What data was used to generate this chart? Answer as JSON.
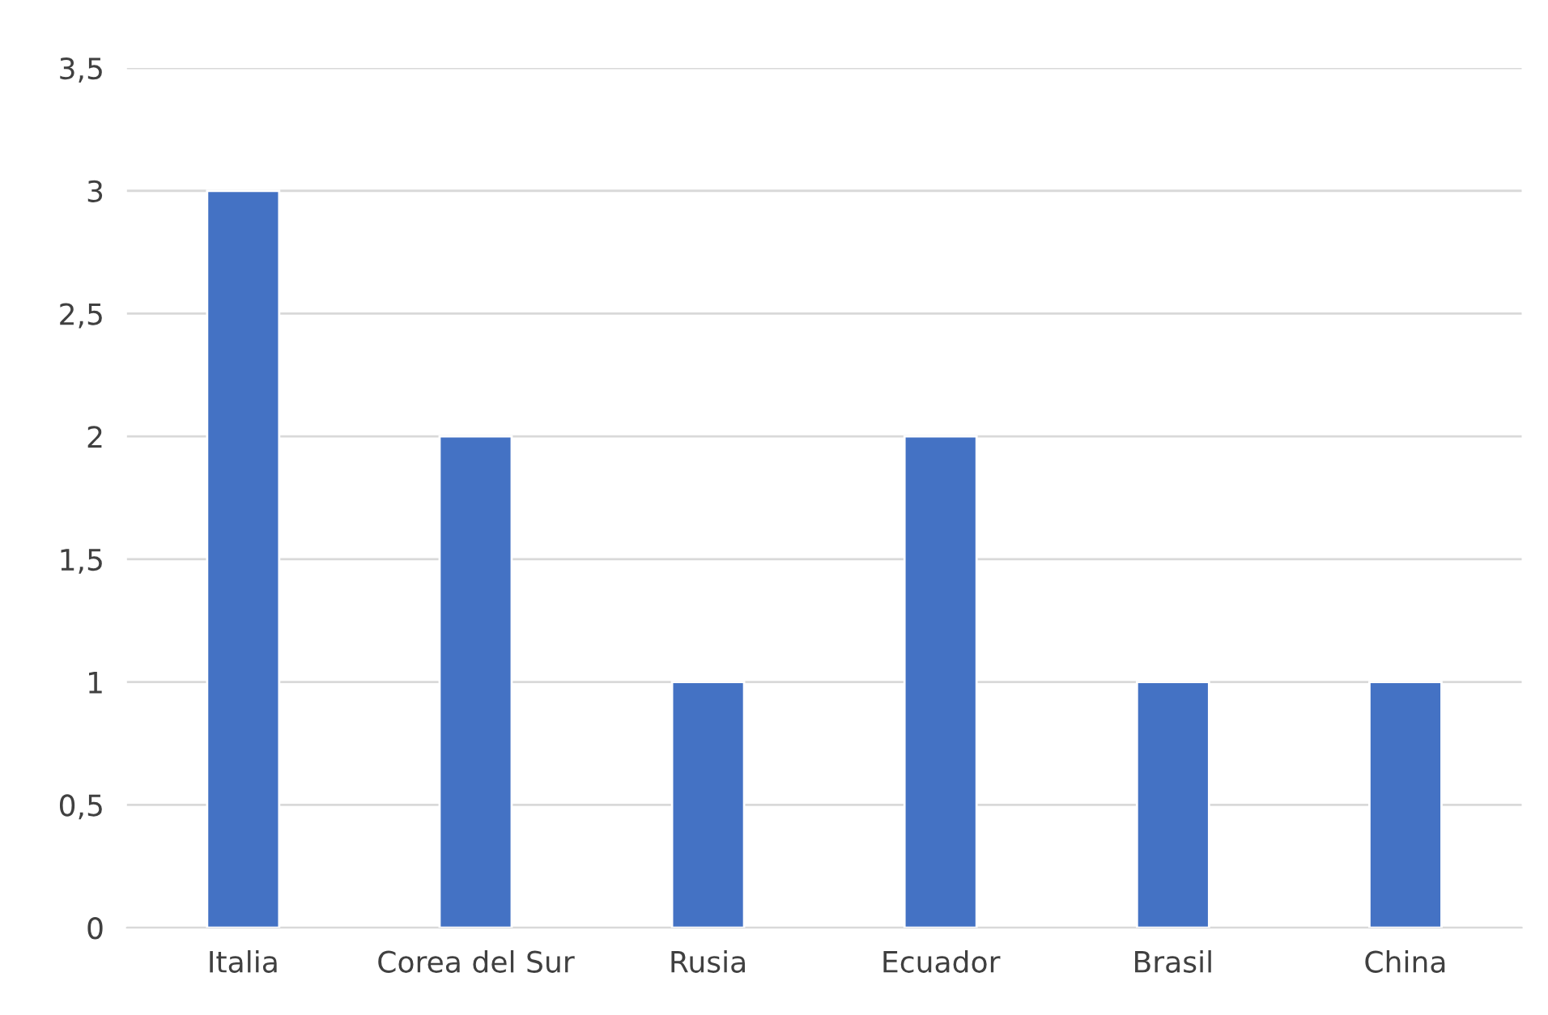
{
  "chart_data": {
    "type": "bar",
    "categories": [
      "Italia",
      "Corea del Sur",
      "Rusia",
      "Ecuador",
      "Brasil",
      "China"
    ],
    "values": [
      3,
      2,
      1,
      2,
      1,
      1
    ],
    "color": "#4472c4",
    "ylim": [
      0,
      3.5
    ],
    "yticks": [
      0,
      {
        "value": 0.5,
        "label": "0,5"
      },
      1,
      {
        "value": 1.5,
        "label": "1,5"
      },
      2,
      {
        "value": 2.5,
        "label": "2,5"
      },
      3,
      {
        "value": 3.5,
        "label": "3,5"
      }
    ],
    "grid": "y"
  }
}
